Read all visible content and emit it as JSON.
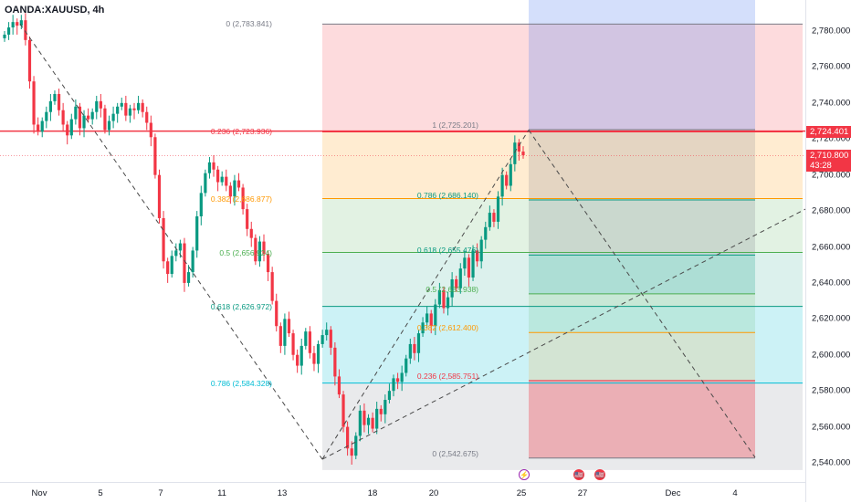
{
  "symbol": {
    "text": "OANDA:XAUUSD, 4h"
  },
  "price_axis": {
    "ticks": [
      "2,780.000",
      "2,760.000",
      "2,740.000",
      "2,720.000",
      "2,700.000",
      "2,680.000",
      "2,660.000",
      "2,640.000",
      "2,620.000",
      "2,600.000",
      "2,580.000",
      "2,560.000",
      "2,540.000"
    ],
    "tick_values": [
      2780,
      2760,
      2740,
      2720,
      2700,
      2680,
      2660,
      2640,
      2620,
      2600,
      2580,
      2560,
      2540
    ],
    "red_line_tag": "2,724.401",
    "current_price_tag": "2,710.800",
    "countdown": "43:28",
    "tag_color": "#f23645"
  },
  "time_axis": {
    "labels": [
      "Nov",
      "5",
      "7",
      "11",
      "13",
      "18",
      "20",
      "25",
      "27",
      "Dec",
      "4"
    ]
  },
  "fib_left": {
    "levels": [
      {
        "label": "0 (2,783.841)",
        "value": 2783.841,
        "color": "#787b86"
      },
      {
        "label": "0.236 (2,723.936)",
        "value": 2723.936,
        "color": "#f23645"
      },
      {
        "label": "0.382 (2,686.877)",
        "value": 2686.877,
        "color": "#ff9800"
      },
      {
        "label": "0.5 (2,656.924)",
        "value": 2656.924,
        "color": "#4caf50"
      },
      {
        "label": "0.618 (2,626.972)",
        "value": 2626.972,
        "color": "#089981"
      },
      {
        "label": "0.786 (2,584.328)",
        "value": 2584.328,
        "color": "#00bcd4"
      }
    ]
  },
  "fib_right": {
    "levels": [
      {
        "label": "1 (2,725.201)",
        "value": 2725.201,
        "color": "#787b86"
      },
      {
        "label": "0.786 (2,686.140)",
        "value": 2686.14,
        "color": "#089981"
      },
      {
        "label": "0.618 (2,655.476)",
        "value": 2655.476,
        "color": "#089981"
      },
      {
        "label": "0.5 (2,633.938)",
        "value": 2633.938,
        "color": "#4caf50"
      },
      {
        "label": "0.382 (2,612.400)",
        "value": 2612.4,
        "color": "#ff9800"
      },
      {
        "label": "0.236 (2,585.751)",
        "value": 2585.751,
        "color": "#f23645"
      },
      {
        "label": "0 (2,542.675)",
        "value": 2542.675,
        "color": "#787b86"
      }
    ]
  },
  "colors": {
    "up": "#089981",
    "down": "#f23645",
    "horizontal_line": "#f23645",
    "blue_zone": "#d1dcfb"
  },
  "events": [
    {
      "name": "lightning-event-icon",
      "symbol": "⚡"
    },
    {
      "name": "us-flag-event-icon",
      "symbol": "🇺🇸"
    },
    {
      "name": "us-flag-event-icon",
      "symbol": "🇺🇸"
    }
  ]
}
